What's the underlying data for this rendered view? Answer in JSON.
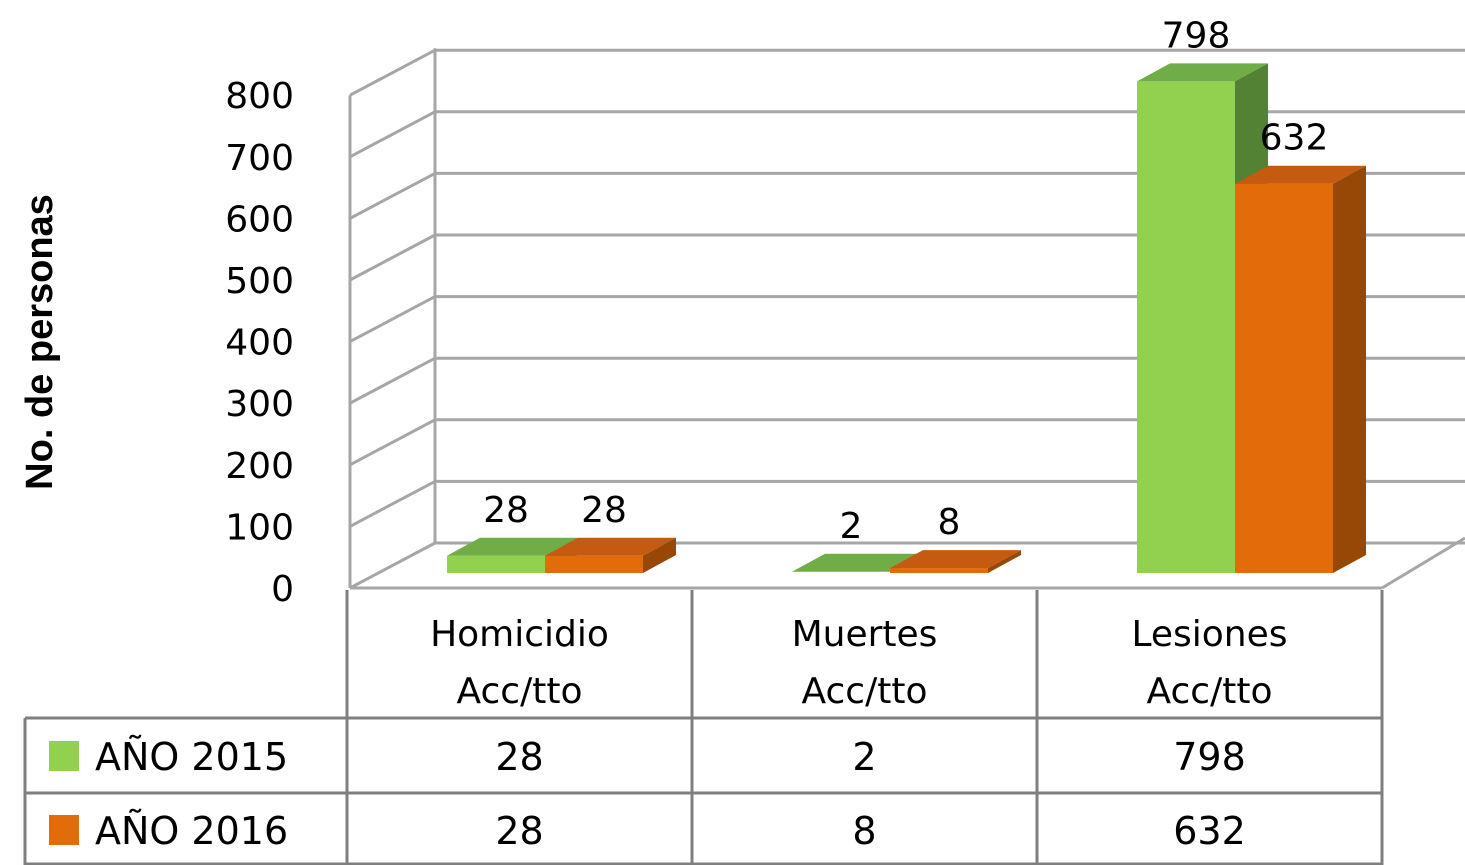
{
  "chart_data": {
    "type": "bar",
    "ylabel": "No. de personas",
    "ylim": [
      0,
      800
    ],
    "yticks": [
      0,
      100,
      200,
      300,
      400,
      500,
      600,
      700,
      800
    ],
    "categories": [
      [
        "Homicidio",
        "Acc/tto"
      ],
      [
        "Muertes",
        "Acc/tto"
      ],
      [
        "Lesiones",
        "Acc/tto"
      ]
    ],
    "series": [
      {
        "name": "AÑO 2015",
        "values": [
          28,
          2,
          798
        ],
        "color": "#92d050",
        "top": "#70ad47",
        "side": "#548235"
      },
      {
        "name": "AÑO 2016",
        "values": [
          28,
          8,
          632
        ],
        "color": "#e36c0a",
        "top": "#c55a11",
        "side": "#974706"
      }
    ],
    "data_table": true,
    "legend": "in-table",
    "grid": true
  }
}
